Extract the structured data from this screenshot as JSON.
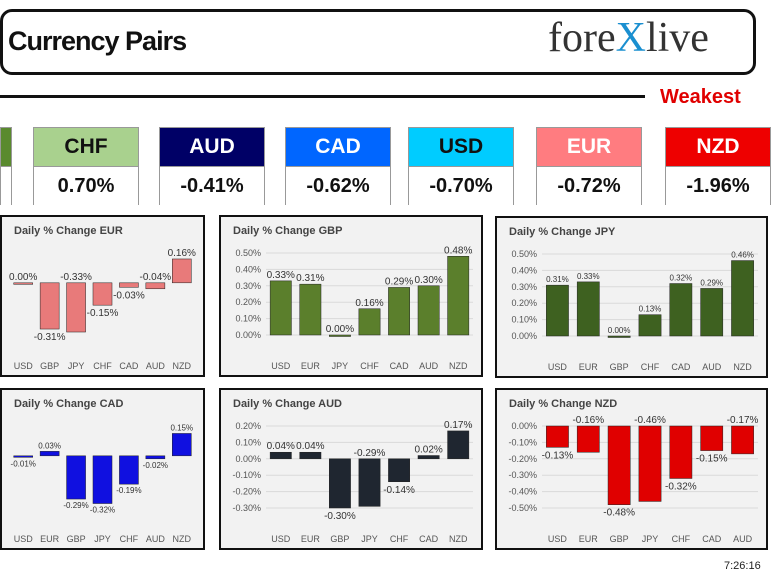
{
  "header": {
    "title": "Currency Pairs",
    "logo": "forexlive",
    "weakest_label": "Weakest"
  },
  "tiles": [
    {
      "code": "",
      "value": "",
      "bg": "#5a8a2e",
      "fg": "#fff"
    },
    {
      "code": "CHF",
      "value": "0.70%",
      "bg": "#a9d18e",
      "fg": "#111"
    },
    {
      "code": "AUD",
      "value": "-0.41%",
      "bg": "#000066",
      "fg": "#fff"
    },
    {
      "code": "CAD",
      "value": "-0.62%",
      "bg": "#0066ff",
      "fg": "#fff"
    },
    {
      "code": "USD",
      "value": "-0.70%",
      "bg": "#00ccff",
      "fg": "#111"
    },
    {
      "code": "EUR",
      "value": "-0.72%",
      "bg": "#ff7c80",
      "fg": "#fff"
    },
    {
      "code": "NZD",
      "value": "-1.96%",
      "bg": "#ee0000",
      "fg": "#fff"
    }
  ],
  "chart_data": [
    {
      "type": "bar",
      "title": "Daily % Change EUR",
      "categories": [
        "USD",
        "GBP",
        "JPY",
        "CHF",
        "CAD",
        "AUD",
        "NZD"
      ],
      "values": [
        0.0,
        -0.31,
        -0.33,
        -0.15,
        -0.03,
        -0.04,
        0.16
      ],
      "labels": [
        "0.00%",
        "-0.31%",
        "-0.33%",
        "-0.15%",
        "-0.03%",
        "-0.04%",
        "0.16%"
      ],
      "ylim": [
        -0.35,
        0.2
      ],
      "color": "#e87a7a",
      "show_axis": false
    },
    {
      "type": "bar",
      "title": "Daily % Change GBP",
      "categories": [
        "USD",
        "EUR",
        "JPY",
        "CHF",
        "CAD",
        "AUD",
        "NZD"
      ],
      "values": [
        0.33,
        0.31,
        0.0,
        0.16,
        0.29,
        0.3,
        0.48
      ],
      "labels": [
        "0.33%",
        "0.31%",
        "0.00%",
        "0.16%",
        "0.29%",
        "0.30%",
        "0.48%"
      ],
      "ylim": [
        0,
        0.5
      ],
      "yticks": [
        "0.00%",
        "0.10%",
        "0.20%",
        "0.30%",
        "0.40%",
        "0.50%"
      ],
      "color": "#5b7f2c",
      "show_axis": true
    },
    {
      "type": "bar",
      "title": "Daily % Change JPY",
      "categories": [
        "USD",
        "EUR",
        "GBP",
        "CHF",
        "CAD",
        "AUD",
        "NZD"
      ],
      "values": [
        0.31,
        0.33,
        0.0,
        0.13,
        0.32,
        0.29,
        0.46
      ],
      "labels": [
        "0.31%",
        "0.33%",
        "0.00%",
        "0.13%",
        "0.32%",
        "0.29%",
        "0.46%"
      ],
      "ylim": [
        0,
        0.5
      ],
      "yticks": [
        "0.00%",
        "0.10%",
        "0.20%",
        "0.30%",
        "0.40%",
        "0.50%"
      ],
      "color": "#3e6120",
      "show_axis": true
    },
    {
      "type": "bar",
      "title": "Daily % Change CAD",
      "categories": [
        "USD",
        "EUR",
        "GBP",
        "JPY",
        "CHF",
        "AUD",
        "NZD"
      ],
      "values": [
        -0.01,
        0.03,
        -0.29,
        -0.32,
        -0.19,
        -0.02,
        0.15
      ],
      "labels": [
        "-0.01%",
        "0.03%",
        "-0.29%",
        "-0.32%",
        "-0.19%",
        "-0.02%",
        "0.15%"
      ],
      "ylim": [
        -0.35,
        0.2
      ],
      "color": "#1010e0",
      "show_axis": false
    },
    {
      "type": "bar",
      "title": "Daily % Change AUD",
      "categories": [
        "USD",
        "EUR",
        "GBP",
        "JPY",
        "CHF",
        "CAD",
        "NZD"
      ],
      "values": [
        0.04,
        0.04,
        -0.3,
        -0.29,
        -0.14,
        0.02,
        0.17
      ],
      "labels": [
        "0.04%",
        "0.04%",
        "-0.30%",
        "-0.29%",
        "-0.14%",
        "0.02%",
        "0.17%"
      ],
      "ylim": [
        -0.3,
        0.2
      ],
      "yticks": [
        "-0.30%",
        "-0.20%",
        "-0.10%",
        "0.00%",
        "0.10%",
        "0.20%"
      ],
      "color": "#1f2630",
      "show_axis": true
    },
    {
      "type": "bar",
      "title": "Daily % Change NZD",
      "categories": [
        "USD",
        "EUR",
        "GBP",
        "JPY",
        "CHF",
        "CAD",
        "AUD"
      ],
      "values": [
        -0.13,
        -0.16,
        -0.48,
        -0.46,
        -0.32,
        -0.15,
        -0.17
      ],
      "labels": [
        "-0.13%",
        "-0.16%",
        "-0.48%",
        "-0.46%",
        "-0.32%",
        "-0.15%",
        "-0.17%"
      ],
      "ylim": [
        -0.5,
        0
      ],
      "yticks": [
        "-0.50%",
        "-0.40%",
        "-0.30%",
        "-0.20%",
        "-0.10%",
        "0.00%"
      ],
      "color": "#e00000",
      "show_axis": true
    }
  ],
  "timestamp": "7:26:16"
}
